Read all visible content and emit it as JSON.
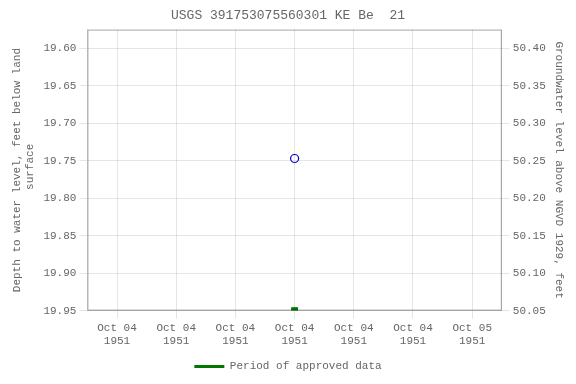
{
  "chart_data": {
    "type": "scatter",
    "title": "USGS 391753075560301 KE Be  21",
    "categories": [
      "Oct 04\n1951",
      "Oct 04\n1951",
      "Oct 04\n1951",
      "Oct 04\n1951",
      "Oct 04\n1951",
      "Oct 04\n1951",
      "Oct 05\n1951"
    ],
    "y_label": "Depth to water level, feet below land\n surface",
    "y2_label": "Groundwater level above NGVD 1929, feet",
    "series": [
      {
        "color": "#0000cc",
        "marker": "open_circle",
        "values": [
          null,
          null,
          null,
          19.747,
          null,
          null,
          null
        ]
      },
      {
        "name": "Period of approved data",
        "color": "#007700",
        "marker": "square",
        "values": [
          null,
          null,
          null,
          19.95,
          null,
          null,
          null
        ]
      }
    ],
    "ylim": [
      19.95,
      19.575
    ],
    "yticks": [
      {
        "value": 19.6,
        "label": "19.60"
      },
      19.65,
      {
        "value": 19.7,
        "label": "19.70"
      },
      19.75,
      {
        "value": 19.8,
        "label": "19.80"
      },
      19.85,
      {
        "value": 19.9,
        "label": "19.90"
      },
      19.95
    ],
    "y2lim": [
      50.05,
      50.425
    ],
    "y2ticks": [
      {
        "value": 50.4,
        "label": "50.40"
      },
      50.35,
      {
        "value": 50.3,
        "label": "50.30"
      },
      50.25,
      {
        "value": 50.2,
        "label": "50.20"
      },
      50.15,
      {
        "value": 50.1,
        "label": "50.10"
      },
      50.05
    ],
    "grid": true,
    "legend": "bottom"
  }
}
